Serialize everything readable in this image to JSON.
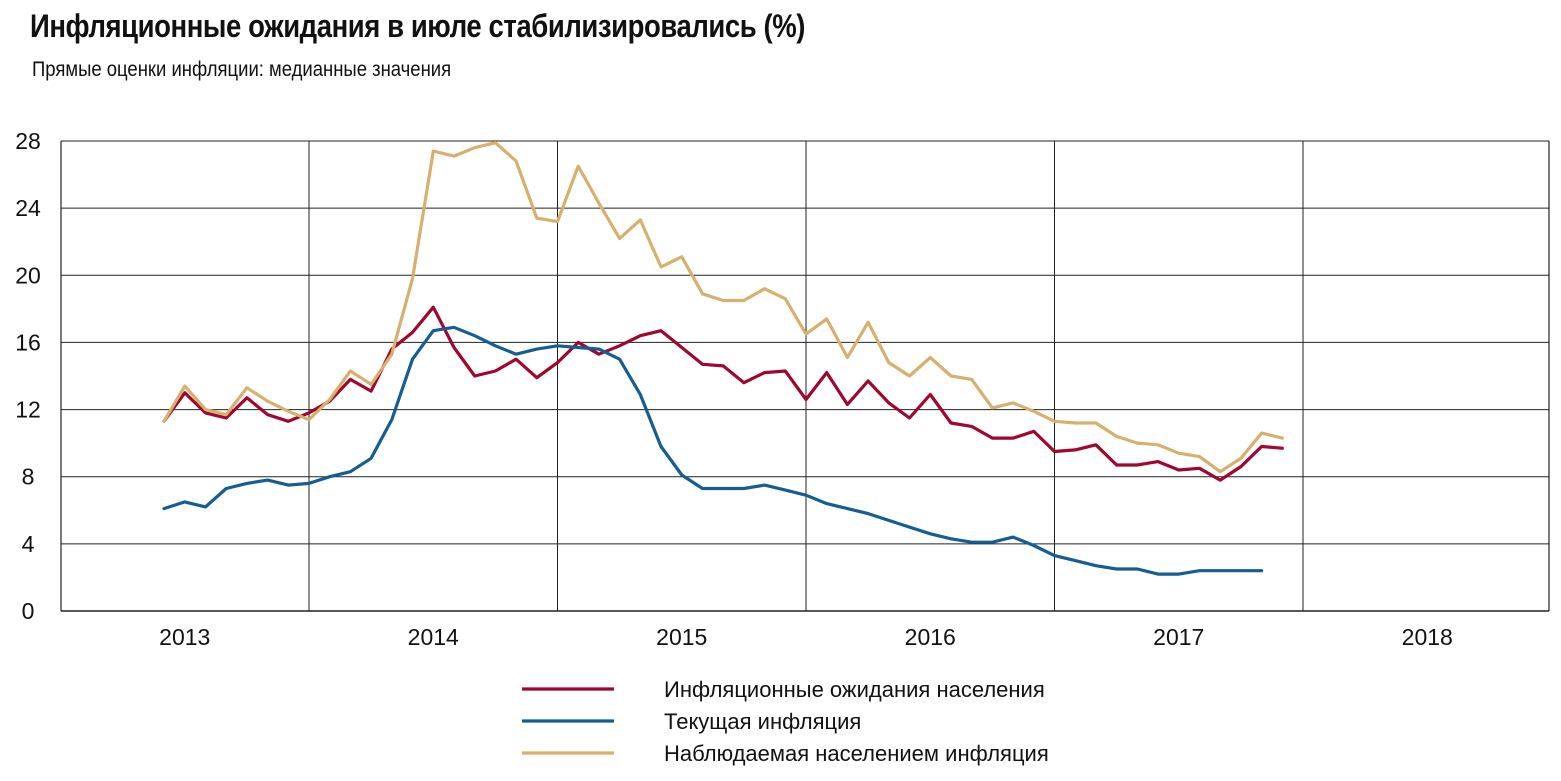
{
  "header": {
    "title": "Инфляционные ожидания в июле стабилизировались (%)",
    "subtitle": "Прямые оценки инфляции: медианные значения"
  },
  "chart_data": {
    "type": "line",
    "ylim": [
      0,
      28
    ],
    "y_ticks": [
      "0",
      "4",
      "8",
      "12",
      "16",
      "20",
      "24",
      "28"
    ],
    "x_ticks": [
      "2013",
      "2014",
      "2015",
      "2016",
      "2017",
      "2018"
    ],
    "grid": true,
    "legend_position": "bottom-center",
    "x_start": "2013-06",
    "x_step": "month",
    "series": [
      {
        "name": "Инфляционные ожидания населения",
        "color": "#a0072e",
        "values": [
          11.3,
          13.0,
          11.8,
          11.5,
          12.7,
          11.7,
          11.3,
          11.8,
          12.5,
          13.8,
          13.1,
          15.6,
          16.6,
          18.1,
          15.7,
          14.0,
          14.3,
          15.0,
          13.9,
          14.8,
          16.0,
          15.3,
          15.8,
          16.4,
          16.7,
          15.7,
          14.7,
          14.6,
          13.6,
          14.2,
          14.3,
          12.6,
          14.2,
          12.3,
          13.7,
          12.4,
          11.5,
          12.9,
          11.2,
          11.0,
          10.3,
          10.3,
          10.7,
          9.5,
          9.6,
          9.9,
          8.7,
          8.7,
          8.9,
          8.4,
          8.5,
          7.8,
          8.6,
          9.8,
          9.7
        ]
      },
      {
        "name": "Текущая инфляция",
        "color": "#155d92",
        "values": [
          6.1,
          6.5,
          6.2,
          7.3,
          7.6,
          7.8,
          7.5,
          7.6,
          8.0,
          8.3,
          9.1,
          11.4,
          15.0,
          16.7,
          16.9,
          16.4,
          15.8,
          15.3,
          15.6,
          15.8,
          15.7,
          15.6,
          15.0,
          12.9,
          9.8,
          8.1,
          7.3,
          7.3,
          7.3,
          7.5,
          7.2,
          6.9,
          6.4,
          6.1,
          5.8,
          5.4,
          5.0,
          4.6,
          4.3,
          4.1,
          4.1,
          4.4,
          3.9,
          3.3,
          3.0,
          2.7,
          2.5,
          2.5,
          2.2,
          2.2,
          2.4,
          2.4,
          2.4,
          2.4
        ]
      },
      {
        "name": "Наблюдаемая населением инфляция",
        "color": "#d7b06e",
        "values": [
          11.3,
          13.4,
          12.0,
          11.7,
          13.3,
          12.5,
          11.9,
          11.4,
          12.6,
          14.3,
          13.5,
          15.3,
          19.8,
          27.4,
          27.1,
          27.6,
          27.9,
          26.8,
          23.4,
          23.2,
          26.5,
          24.3,
          22.2,
          23.3,
          20.5,
          21.1,
          18.9,
          18.5,
          18.5,
          19.2,
          18.6,
          16.5,
          17.4,
          15.1,
          17.2,
          14.8,
          14.0,
          15.1,
          14.0,
          13.8,
          12.1,
          12.4,
          11.9,
          11.3,
          11.2,
          11.2,
          10.4,
          10.0,
          9.9,
          9.4,
          9.2,
          8.3,
          9.1,
          10.6,
          10.3
        ]
      }
    ]
  }
}
